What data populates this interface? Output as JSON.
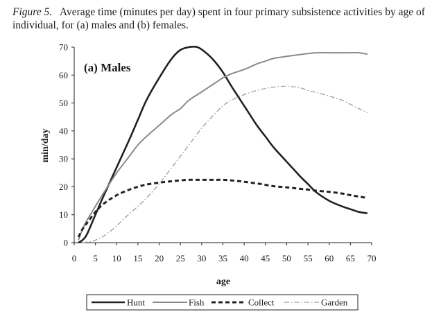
{
  "caption": {
    "figure_label": "Figure 5.",
    "text": "Average time (minutes per day) spent in four primary subsistence activities by age of individual, for (a) males and (b) females."
  },
  "chart_data": {
    "type": "line",
    "title": "(a) Males",
    "xlabel": "age",
    "ylabel": "min/day",
    "xlim": [
      0,
      70
    ],
    "ylim": [
      0,
      70
    ],
    "x_ticks": [
      0,
      5,
      10,
      15,
      20,
      25,
      30,
      35,
      40,
      45,
      50,
      55,
      60,
      65,
      70
    ],
    "y_ticks": [
      0,
      10,
      20,
      30,
      40,
      50,
      60,
      70
    ],
    "grid": false,
    "legend_position": "bottom",
    "series": [
      {
        "name": "Hunt",
        "style": "solid",
        "color": "#222222",
        "x": [
          1,
          2,
          3,
          5,
          7,
          10,
          13,
          15,
          17,
          20,
          23,
          25,
          27,
          29,
          31,
          33,
          35,
          37,
          40,
          43,
          45,
          47,
          50,
          53,
          55,
          57,
          60,
          63,
          65,
          67,
          69
        ],
        "y": [
          0,
          1,
          3,
          10,
          17,
          27,
          37,
          44,
          51,
          59,
          66,
          69,
          70,
          70,
          68,
          65,
          61,
          56,
          49,
          42,
          38,
          34,
          29,
          24,
          21,
          18,
          15,
          13,
          12,
          11,
          10.5
        ]
      },
      {
        "name": "Fish",
        "style": "solid",
        "color": "#8a8a8a",
        "x": [
          1,
          2,
          3,
          5,
          7,
          10,
          13,
          15,
          17,
          20,
          23,
          25,
          27,
          30,
          33,
          35,
          37,
          40,
          43,
          45,
          47,
          50,
          53,
          55,
          57,
          60,
          63,
          65,
          67,
          69
        ],
        "y": [
          1,
          5,
          8,
          13,
          18,
          25,
          31,
          35,
          38,
          42,
          46,
          48,
          51,
          54,
          57,
          59,
          60.5,
          62,
          64,
          65,
          66,
          66.7,
          67.3,
          67.7,
          68,
          68,
          68,
          68,
          68,
          67.5
        ]
      },
      {
        "name": "Collect",
        "style": "dashed",
        "color": "#222222",
        "x": [
          1,
          2,
          3,
          5,
          7,
          10,
          13,
          15,
          17,
          20,
          23,
          25,
          27,
          30,
          33,
          35,
          37,
          40,
          43,
          45,
          47,
          50,
          53,
          55,
          57,
          60,
          63,
          65,
          67,
          69
        ],
        "y": [
          2,
          5,
          7,
          11,
          14,
          17,
          19,
          20,
          20.8,
          21.5,
          22,
          22.3,
          22.5,
          22.5,
          22.5,
          22.5,
          22.3,
          21.8,
          21.2,
          20.7,
          20.2,
          19.8,
          19.3,
          19,
          18.6,
          18.2,
          17.6,
          17,
          16.5,
          16
        ]
      },
      {
        "name": "Garden",
        "style": "dash-dot",
        "color": "#9a9a9a",
        "x": [
          2,
          4,
          6,
          8,
          10,
          12,
          15,
          17,
          20,
          23,
          25,
          27,
          30,
          33,
          35,
          37,
          40,
          43,
          45,
          47,
          50,
          53,
          55,
          57,
          60,
          63,
          65,
          67,
          69
        ],
        "y": [
          0,
          0.5,
          1.5,
          3.5,
          6,
          9,
          13,
          16,
          21,
          27,
          31,
          35,
          41,
          46,
          49,
          51,
          53,
          54.5,
          55.2,
          55.7,
          56,
          55.5,
          54.5,
          53.8,
          52.5,
          51,
          49.5,
          48,
          46.5
        ]
      }
    ]
  }
}
